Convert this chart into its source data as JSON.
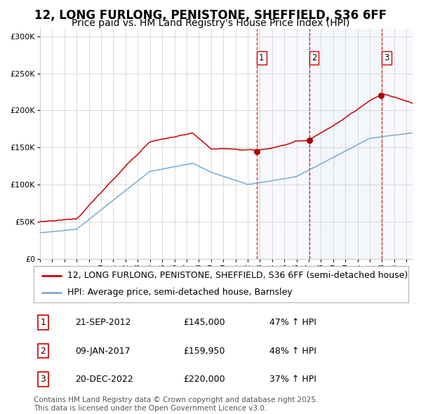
{
  "title": "12, LONG FURLONG, PENISTONE, SHEFFIELD, S36 6FF",
  "subtitle": "Price paid vs. HM Land Registry's House Price Index (HPI)",
  "ylim": [
    0,
    310000
  ],
  "yticks": [
    0,
    50000,
    100000,
    150000,
    200000,
    250000,
    300000
  ],
  "ytick_labels": [
    "£0",
    "£50K",
    "£100K",
    "£150K",
    "£200K",
    "£250K",
    "£300K"
  ],
  "sale_points": [
    {
      "label": "1",
      "date": "21-SEP-2012",
      "price": 145000,
      "price_str": "£145,000",
      "pct": "47% ↑ HPI",
      "year": 2012.73
    },
    {
      "label": "2",
      "date": "09-JAN-2017",
      "price": 159950,
      "price_str": "£159,950",
      "pct": "48% ↑ HPI",
      "year": 2017.03
    },
    {
      "label": "3",
      "date": "20-DEC-2022",
      "price": 220000,
      "price_str": "£220,000",
      "pct": "37% ↑ HPI",
      "year": 2022.97
    }
  ],
  "shade_start": 2012.73,
  "shade_end": 2025.5,
  "shade2_start": 2017.03,
  "shade2_end": 2022.97,
  "legend_property": "12, LONG FURLONG, PENISTONE, SHEFFIELD, S36 6FF (semi-detached house)",
  "legend_hpi": "HPI: Average price, semi-detached house, Barnsley",
  "footer": "Contains HM Land Registry data © Crown copyright and database right 2025.\nThis data is licensed under the Open Government Licence v3.0.",
  "red_color": "#cc0000",
  "blue_color": "#7aaad0",
  "shade_color": "#dce8f5",
  "grid_color": "#cccccc",
  "background_color": "#ffffff",
  "title_fontsize": 12,
  "subtitle_fontsize": 10,
  "tick_fontsize": 8,
  "legend_fontsize": 9,
  "footer_fontsize": 7.5,
  "xmin": 1995,
  "xmax": 2025.5
}
